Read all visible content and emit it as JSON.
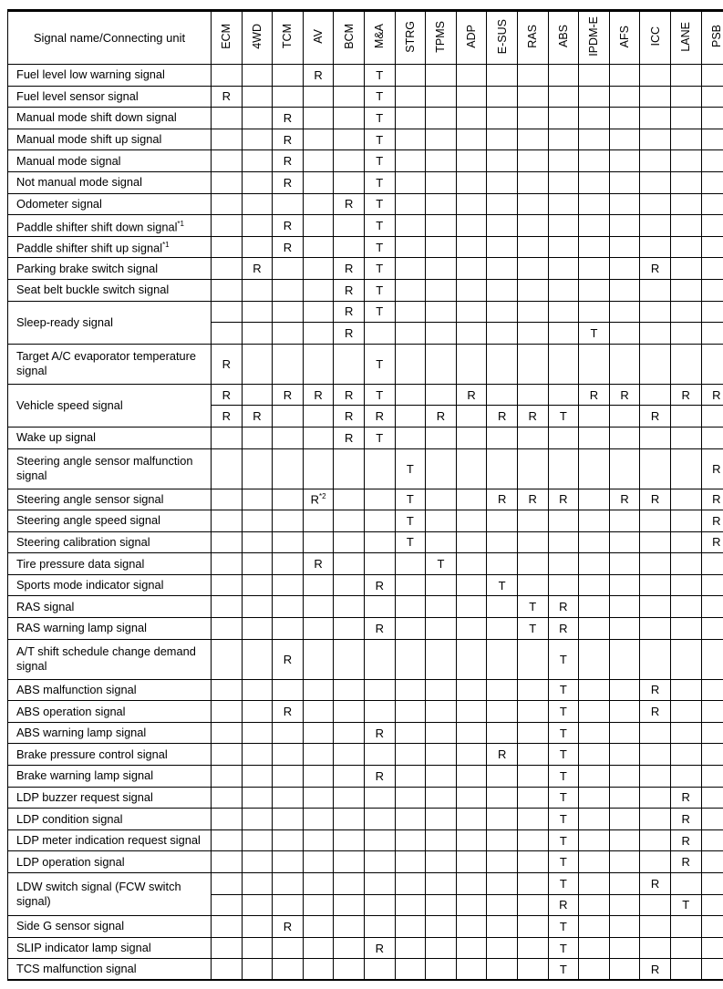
{
  "header": {
    "first_column": "Signal name/Connecting unit",
    "units": [
      "ECM",
      "4WD",
      "TCM",
      "AV",
      "BCM",
      "M&A",
      "STRG",
      "TPMS",
      "ADP",
      "E-SUS",
      "RAS",
      "ABS",
      "IPDM-E",
      "AFS",
      "ICC",
      "LANE",
      "PSB"
    ]
  },
  "rows": [
    {
      "name": "Fuel level low warning signal",
      "sub": [
        {
          "AV": "R",
          "M&A": "T"
        }
      ]
    },
    {
      "name": "Fuel level sensor signal",
      "sub": [
        {
          "ECM": "R",
          "M&A": "T"
        }
      ]
    },
    {
      "name": "Manual mode shift down signal",
      "sub": [
        {
          "TCM": "R",
          "M&A": "T"
        }
      ]
    },
    {
      "name": "Manual mode shift up signal",
      "sub": [
        {
          "TCM": "R",
          "M&A": "T"
        }
      ]
    },
    {
      "name": "Manual mode signal",
      "sub": [
        {
          "TCM": "R",
          "M&A": "T"
        }
      ]
    },
    {
      "name": "Not manual mode signal",
      "sub": [
        {
          "TCM": "R",
          "M&A": "T"
        }
      ]
    },
    {
      "name": "Odometer signal",
      "sub": [
        {
          "BCM": "R",
          "M&A": "T"
        }
      ]
    },
    {
      "name": "Paddle shifter shift down signal",
      "sup": "*1",
      "sub": [
        {
          "TCM": "R",
          "M&A": "T"
        }
      ]
    },
    {
      "name": "Paddle shifter shift up signal",
      "sup": "*1",
      "sub": [
        {
          "TCM": "R",
          "M&A": "T"
        }
      ]
    },
    {
      "name": "Parking brake switch signal",
      "sub": [
        {
          "4WD": "R",
          "BCM": "R",
          "M&A": "T",
          "ICC": "R"
        }
      ]
    },
    {
      "name": "Seat belt buckle switch signal",
      "sub": [
        {
          "BCM": "R",
          "M&A": "T"
        }
      ]
    },
    {
      "name": "Sleep-ready signal",
      "sub": [
        {
          "BCM": "R",
          "M&A": "T"
        },
        {
          "BCM": "R",
          "IPDM-E": "T"
        }
      ]
    },
    {
      "name": "Target A/C evaporator temperature signal",
      "tall": true,
      "sub": [
        {
          "ECM": "R",
          "M&A": "T"
        }
      ]
    },
    {
      "name": "Vehicle speed signal",
      "sub": [
        {
          "ECM": "R",
          "TCM": "R",
          "AV": "R",
          "BCM": "R",
          "M&A": "T",
          "ADP": "R",
          "IPDM-E": "R",
          "AFS": "R",
          "LANE": "R",
          "PSB": "R"
        },
        {
          "ECM": "R",
          "4WD": "R",
          "BCM": "R",
          "M&A": "R",
          "TPMS": "R",
          "E-SUS": "R",
          "RAS": "R",
          "ABS": "T",
          "ICC": "R"
        }
      ]
    },
    {
      "name": "Wake up signal",
      "sub": [
        {
          "BCM": "R",
          "M&A": "T"
        }
      ]
    },
    {
      "name": "Steering angle sensor malfunction signal",
      "tall": true,
      "sub": [
        {
          "STRG": "T",
          "PSB": "R"
        }
      ]
    },
    {
      "name": "Steering angle sensor signal",
      "sub": [
        {
          "AV": "R",
          "STRG": "T",
          "E-SUS": "R",
          "RAS": "R",
          "ABS": "R",
          "AFS": "R",
          "ICC": "R",
          "PSB": "R"
        }
      ],
      "cell_sup": {
        "AV": "*2"
      }
    },
    {
      "name": "Steering angle speed signal",
      "sub": [
        {
          "STRG": "T",
          "PSB": "R"
        }
      ]
    },
    {
      "name": "Steering calibration signal",
      "sub": [
        {
          "STRG": "T",
          "PSB": "R"
        }
      ]
    },
    {
      "name": "Tire pressure data signal",
      "sub": [
        {
          "AV": "R",
          "TPMS": "T"
        }
      ]
    },
    {
      "name": "Sports mode indicator signal",
      "sub": [
        {
          "M&A": "R",
          "E-SUS": "T"
        }
      ]
    },
    {
      "name": "RAS signal",
      "sub": [
        {
          "RAS": "T",
          "ABS": "R"
        }
      ]
    },
    {
      "name": "RAS warning lamp signal",
      "sub": [
        {
          "M&A": "R",
          "RAS": "T",
          "ABS": "R"
        }
      ]
    },
    {
      "name": "A/T shift schedule change demand signal",
      "tall": true,
      "sub": [
        {
          "TCM": "R",
          "ABS": "T"
        }
      ]
    },
    {
      "name": "ABS malfunction signal",
      "sub": [
        {
          "ABS": "T",
          "ICC": "R"
        }
      ]
    },
    {
      "name": "ABS operation signal",
      "sub": [
        {
          "TCM": "R",
          "ABS": "T",
          "ICC": "R"
        }
      ]
    },
    {
      "name": "ABS warning lamp signal",
      "sub": [
        {
          "M&A": "R",
          "ABS": "T"
        }
      ]
    },
    {
      "name": "Brake pressure control signal",
      "sub": [
        {
          "E-SUS": "R",
          "ABS": "T"
        }
      ]
    },
    {
      "name": "Brake warning lamp signal",
      "sub": [
        {
          "M&A": "R",
          "ABS": "T"
        }
      ]
    },
    {
      "name": "LDP buzzer request signal",
      "sub": [
        {
          "ABS": "T",
          "LANE": "R"
        }
      ]
    },
    {
      "name": "LDP condition signal",
      "sub": [
        {
          "ABS": "T",
          "LANE": "R"
        }
      ]
    },
    {
      "name": "LDP meter indication request signal",
      "sub": [
        {
          "ABS": "T",
          "LANE": "R"
        }
      ]
    },
    {
      "name": "LDP operation signal",
      "sub": [
        {
          "ABS": "T",
          "LANE": "R"
        }
      ]
    },
    {
      "name": "LDW switch signal (FCW switch signal)",
      "sub": [
        {
          "ABS": "T",
          "ICC": "R"
        },
        {
          "ABS": "R",
          "LANE": "T"
        }
      ]
    },
    {
      "name": "Side G sensor signal",
      "sub": [
        {
          "TCM": "R",
          "ABS": "T"
        }
      ]
    },
    {
      "name": "SLIP indicator lamp signal",
      "sub": [
        {
          "M&A": "R",
          "ABS": "T"
        }
      ]
    },
    {
      "name": "TCS malfunction signal",
      "sub": [
        {
          "ABS": "T",
          "ICC": "R"
        }
      ]
    }
  ]
}
